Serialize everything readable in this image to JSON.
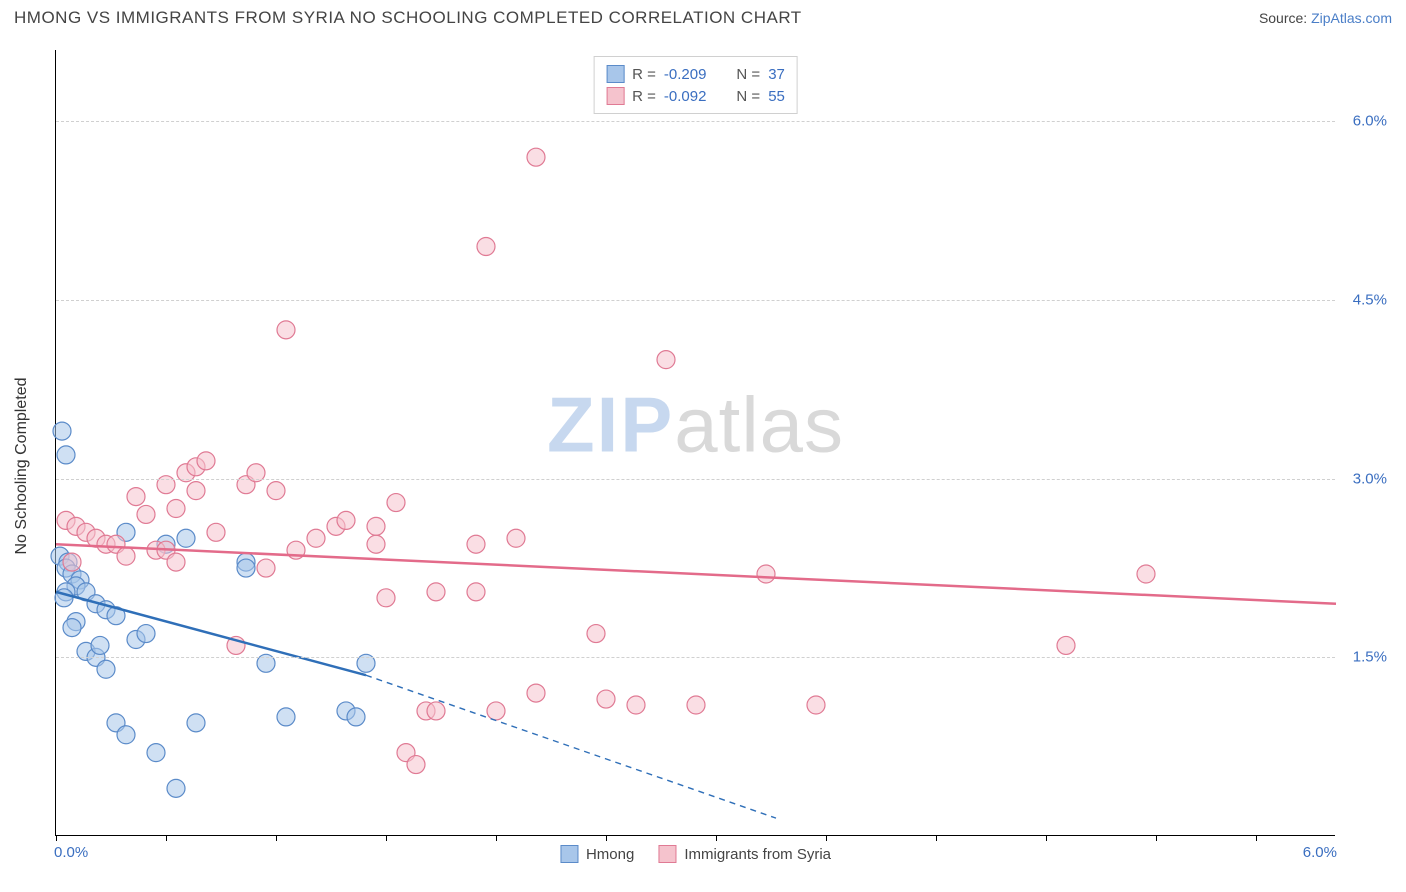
{
  "title": "HMONG VS IMMIGRANTS FROM SYRIA NO SCHOOLING COMPLETED CORRELATION CHART",
  "source_label": "Source:",
  "source_name": "ZipAtlas.com",
  "y_axis_title": "No Schooling Completed",
  "watermark_a": "ZIP",
  "watermark_b": "atlas",
  "chart": {
    "type": "scatter",
    "xlim": [
      0,
      6.4
    ],
    "ylim": [
      0,
      6.6
    ],
    "x_ticks": [
      0.0,
      0.55,
      1.1,
      1.65,
      2.2,
      2.75,
      3.3,
      3.85,
      4.4,
      4.95,
      5.5,
      6.0
    ],
    "x_labels": {
      "min": "0.0%",
      "max": "6.0%"
    },
    "y_grid": [
      1.5,
      3.0,
      4.5,
      6.0
    ],
    "y_labels": [
      "1.5%",
      "3.0%",
      "4.5%",
      "6.0%"
    ],
    "background_color": "#ffffff",
    "grid_color": "#d0d0d0",
    "marker_radius": 9,
    "marker_opacity": 0.55,
    "line_width": 2.5,
    "series": [
      {
        "name": "Hmong",
        "fill": "#a8c6ea",
        "stroke": "#5b8bc9",
        "line_color": "#2f6fb8",
        "R": "-0.209",
        "N": "37",
        "points": [
          [
            0.03,
            3.4
          ],
          [
            0.05,
            3.2
          ],
          [
            0.02,
            2.35
          ],
          [
            0.06,
            2.3
          ],
          [
            0.05,
            2.25
          ],
          [
            0.08,
            2.2
          ],
          [
            0.12,
            2.15
          ],
          [
            0.1,
            2.1
          ],
          [
            0.15,
            2.05
          ],
          [
            0.05,
            2.05
          ],
          [
            0.04,
            2.0
          ],
          [
            0.2,
            1.95
          ],
          [
            0.25,
            1.9
          ],
          [
            0.3,
            1.85
          ],
          [
            0.1,
            1.8
          ],
          [
            0.08,
            1.75
          ],
          [
            0.35,
            2.55
          ],
          [
            0.4,
            1.65
          ],
          [
            0.15,
            1.55
          ],
          [
            0.2,
            1.5
          ],
          [
            0.25,
            1.4
          ],
          [
            0.3,
            0.95
          ],
          [
            0.35,
            0.85
          ],
          [
            0.5,
            0.7
          ],
          [
            0.6,
            0.4
          ],
          [
            0.7,
            0.95
          ],
          [
            0.55,
            2.45
          ],
          [
            0.65,
            2.5
          ],
          [
            0.95,
            2.3
          ],
          [
            0.95,
            2.25
          ],
          [
            1.05,
            1.45
          ],
          [
            1.15,
            1.0
          ],
          [
            1.45,
            1.05
          ],
          [
            1.5,
            1.0
          ],
          [
            1.55,
            1.45
          ],
          [
            0.45,
            1.7
          ],
          [
            0.22,
            1.6
          ]
        ],
        "trend": {
          "x1": 0.0,
          "y1": 2.05,
          "x2": 1.55,
          "y2": 1.35,
          "ext_x": 3.6,
          "ext_y": 0.15
        }
      },
      {
        "name": "Immigrants from Syria",
        "fill": "#f5c3cd",
        "stroke": "#e07a94",
        "line_color": "#e36b8a",
        "R": "-0.092",
        "N": "55",
        "points": [
          [
            0.05,
            2.65
          ],
          [
            0.1,
            2.6
          ],
          [
            0.15,
            2.55
          ],
          [
            0.2,
            2.5
          ],
          [
            0.25,
            2.45
          ],
          [
            0.3,
            2.45
          ],
          [
            0.4,
            2.85
          ],
          [
            0.45,
            2.7
          ],
          [
            0.5,
            2.4
          ],
          [
            0.55,
            2.4
          ],
          [
            0.55,
            2.95
          ],
          [
            0.6,
            2.75
          ],
          [
            0.6,
            2.3
          ],
          [
            0.65,
            3.05
          ],
          [
            0.7,
            2.9
          ],
          [
            0.7,
            3.1
          ],
          [
            0.75,
            3.15
          ],
          [
            0.8,
            2.55
          ],
          [
            0.9,
            1.6
          ],
          [
            0.95,
            2.95
          ],
          [
            1.0,
            3.05
          ],
          [
            1.1,
            2.9
          ],
          [
            1.15,
            4.25
          ],
          [
            1.2,
            2.4
          ],
          [
            1.4,
            2.6
          ],
          [
            1.45,
            2.65
          ],
          [
            1.6,
            2.6
          ],
          [
            1.6,
            2.45
          ],
          [
            1.65,
            2.0
          ],
          [
            1.7,
            2.8
          ],
          [
            1.75,
            0.7
          ],
          [
            1.8,
            0.6
          ],
          [
            1.85,
            1.05
          ],
          [
            1.9,
            2.05
          ],
          [
            1.9,
            1.05
          ],
          [
            2.1,
            2.05
          ],
          [
            2.1,
            2.45
          ],
          [
            2.15,
            4.95
          ],
          [
            2.2,
            1.05
          ],
          [
            2.3,
            2.5
          ],
          [
            2.4,
            1.2
          ],
          [
            2.4,
            5.7
          ],
          [
            2.7,
            1.7
          ],
          [
            2.75,
            1.15
          ],
          [
            2.9,
            1.1
          ],
          [
            3.05,
            4.0
          ],
          [
            3.2,
            1.1
          ],
          [
            3.55,
            2.2
          ],
          [
            3.8,
            1.1
          ],
          [
            5.05,
            1.6
          ],
          [
            5.45,
            2.2
          ],
          [
            0.35,
            2.35
          ],
          [
            0.08,
            2.3
          ],
          [
            1.05,
            2.25
          ],
          [
            1.3,
            2.5
          ]
        ],
        "trend": {
          "x1": 0.0,
          "y1": 2.45,
          "x2": 6.4,
          "y2": 1.95
        }
      }
    ]
  },
  "legend_top": {
    "r_prefix": "R =",
    "n_prefix": "N ="
  },
  "legend_bottom": [
    {
      "label": "Hmong",
      "fill": "#a8c6ea",
      "stroke": "#5b8bc9"
    },
    {
      "label": "Immigrants from Syria",
      "fill": "#f5c3cd",
      "stroke": "#e07a94"
    }
  ]
}
